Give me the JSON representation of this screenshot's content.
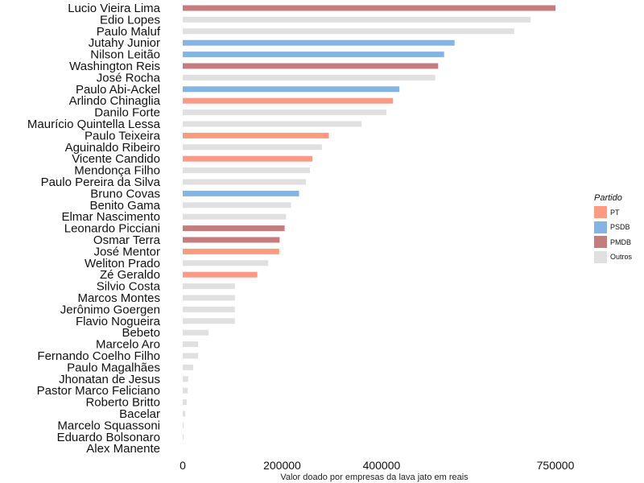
{
  "chart_data": {
    "type": "bar",
    "orientation": "horizontal",
    "xlabel": "Valor doado por empresas da lava jato em reais",
    "xlim": [
      0,
      800000
    ],
    "xticks": [
      0,
      200000,
      400000,
      750000
    ],
    "xtick_labels": [
      "0",
      "200000",
      "400000",
      "750000"
    ],
    "grid": false,
    "legend_position": "right",
    "legend_title": "Partido",
    "parties": [
      {
        "name": "PT",
        "color": "#fc9a84"
      },
      {
        "name": "PSDB",
        "color": "#84b4e4"
      },
      {
        "name": "PMDB",
        "color": "#c47c7c"
      },
      {
        "name": "Outros",
        "color": "#e0e0e0"
      }
    ],
    "categories": [
      "Lucio Vieira Lima",
      "Edio Lopes",
      "Paulo Maluf",
      "Jutahy Junior",
      "Nilson Leitão",
      "Washington Reis",
      "José Rocha",
      "Paulo Abi-Ackel",
      "Arlindo Chinaglia",
      "Danilo Forte",
      "Maurício Quintella Lessa",
      "Paulo Teixeira",
      "Aguinaldo Ribeiro",
      "Vicente Candido",
      "Mendonça Filho",
      "Paulo Pereira da Silva",
      "Bruno Covas",
      "Benito Gama",
      "Elmar Nascimento",
      "Leonardo Picciani",
      "Osmar Terra",
      "José Mentor",
      "Weliton Prado",
      "Zé Geraldo",
      "Silvio Costa",
      "Marcos Montes",
      "Jerônimo Goergen",
      "Flavio Nogueira",
      "Bebeto",
      "Marcelo Aro",
      "Fernando Coelho Filho",
      "Paulo Magalhães",
      "Jhonatan de Jesus",
      "Pastor Marco Feliciano",
      "Roberto Britto",
      "Bacelar",
      "Marcelo Squassoni",
      "Eduardo Bolsonaro",
      "Alex Manente"
    ],
    "values": [
      750000,
      700000,
      667000,
      547000,
      526000,
      514000,
      508000,
      436000,
      423000,
      410000,
      360000,
      294000,
      280000,
      261000,
      256000,
      248000,
      234000,
      218000,
      208000,
      205000,
      195000,
      194000,
      172000,
      150000,
      105000,
      105000,
      105000,
      105000,
      52000,
      31000,
      31000,
      21000,
      11000,
      10000,
      8000,
      5000,
      2000,
      2000,
      0
    ],
    "party": [
      "PMDB",
      "Outros",
      "Outros",
      "PSDB",
      "PSDB",
      "PMDB",
      "Outros",
      "PSDB",
      "PT",
      "Outros",
      "Outros",
      "PT",
      "Outros",
      "PT",
      "Outros",
      "Outros",
      "PSDB",
      "Outros",
      "Outros",
      "PMDB",
      "PMDB",
      "PT",
      "Outros",
      "PT",
      "Outros",
      "Outros",
      "Outros",
      "Outros",
      "Outros",
      "Outros",
      "Outros",
      "Outros",
      "Outros",
      "Outros",
      "Outros",
      "Outros",
      "Outros",
      "Outros",
      "Outros"
    ]
  }
}
